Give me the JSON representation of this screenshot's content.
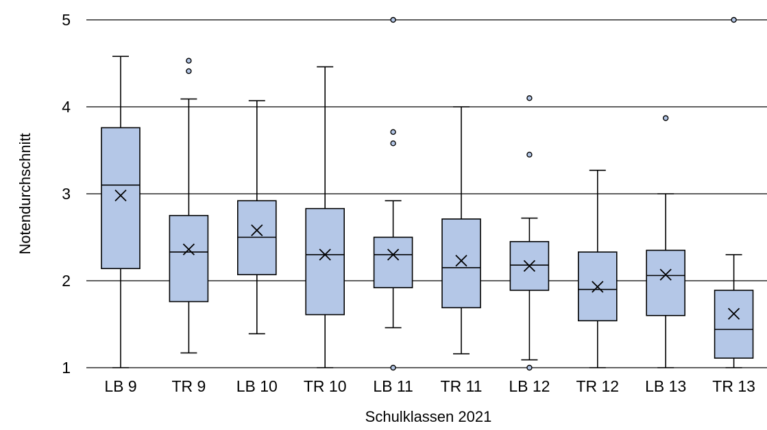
{
  "chart_data": {
    "type": "boxplot",
    "xlabel": "Schulklassen 2021",
    "ylabel": "Notendurchschnitt",
    "ylim": [
      1,
      5
    ],
    "yticks": [
      1,
      2,
      3,
      4,
      5
    ],
    "grid": "horizontal",
    "legend": "none",
    "colors": {
      "box_fill": "#b4c7e7",
      "stroke": "#000000",
      "outlier_fill": "#b4c7e7"
    },
    "categories": [
      "LB 9",
      "TR 9",
      "LB 10",
      "TR 10",
      "LB 11",
      "TR 11",
      "LB 12",
      "TR 12",
      "LB 13",
      "TR 13"
    ],
    "boxes": [
      {
        "label": "LB 9",
        "min": 1.0,
        "q1": 2.14,
        "median": 3.1,
        "q3": 3.76,
        "max": 4.58,
        "mean": 2.98,
        "outliers": []
      },
      {
        "label": "TR 9",
        "min": 1.17,
        "q1": 1.76,
        "median": 2.33,
        "q3": 2.75,
        "max": 4.09,
        "mean": 2.36,
        "outliers": [
          4.41,
          4.53
        ]
      },
      {
        "label": "LB 10",
        "min": 1.39,
        "q1": 2.07,
        "median": 2.5,
        "q3": 2.92,
        "max": 4.07,
        "mean": 2.58,
        "outliers": []
      },
      {
        "label": "TR 10",
        "min": 1.0,
        "q1": 1.61,
        "median": 2.3,
        "q3": 2.83,
        "max": 4.46,
        "mean": 2.3,
        "outliers": []
      },
      {
        "label": "LB 11",
        "min": 1.46,
        "q1": 1.92,
        "median": 2.3,
        "q3": 2.5,
        "max": 2.92,
        "mean": 2.3,
        "outliers": [
          1.0,
          3.58,
          3.71,
          5.0
        ]
      },
      {
        "label": "TR 11",
        "min": 1.16,
        "q1": 1.69,
        "median": 2.15,
        "q3": 2.71,
        "max": 4.0,
        "mean": 2.23,
        "outliers": []
      },
      {
        "label": "LB 12",
        "min": 1.09,
        "q1": 1.89,
        "median": 2.18,
        "q3": 2.45,
        "max": 2.72,
        "mean": 2.17,
        "outliers": [
          1.0,
          3.45,
          4.1
        ]
      },
      {
        "label": "TR 12",
        "min": 1.0,
        "q1": 1.54,
        "median": 1.9,
        "q3": 2.33,
        "max": 3.27,
        "mean": 1.93,
        "outliers": []
      },
      {
        "label": "LB 13",
        "min": 1.0,
        "q1": 1.6,
        "median": 2.06,
        "q3": 2.35,
        "max": 3.0,
        "mean": 2.07,
        "outliers": [
          3.87
        ]
      },
      {
        "label": "TR 13",
        "min": 1.0,
        "q1": 1.11,
        "median": 1.44,
        "q3": 1.89,
        "max": 2.3,
        "mean": 1.62,
        "outliers": [
          5.0
        ]
      }
    ]
  }
}
